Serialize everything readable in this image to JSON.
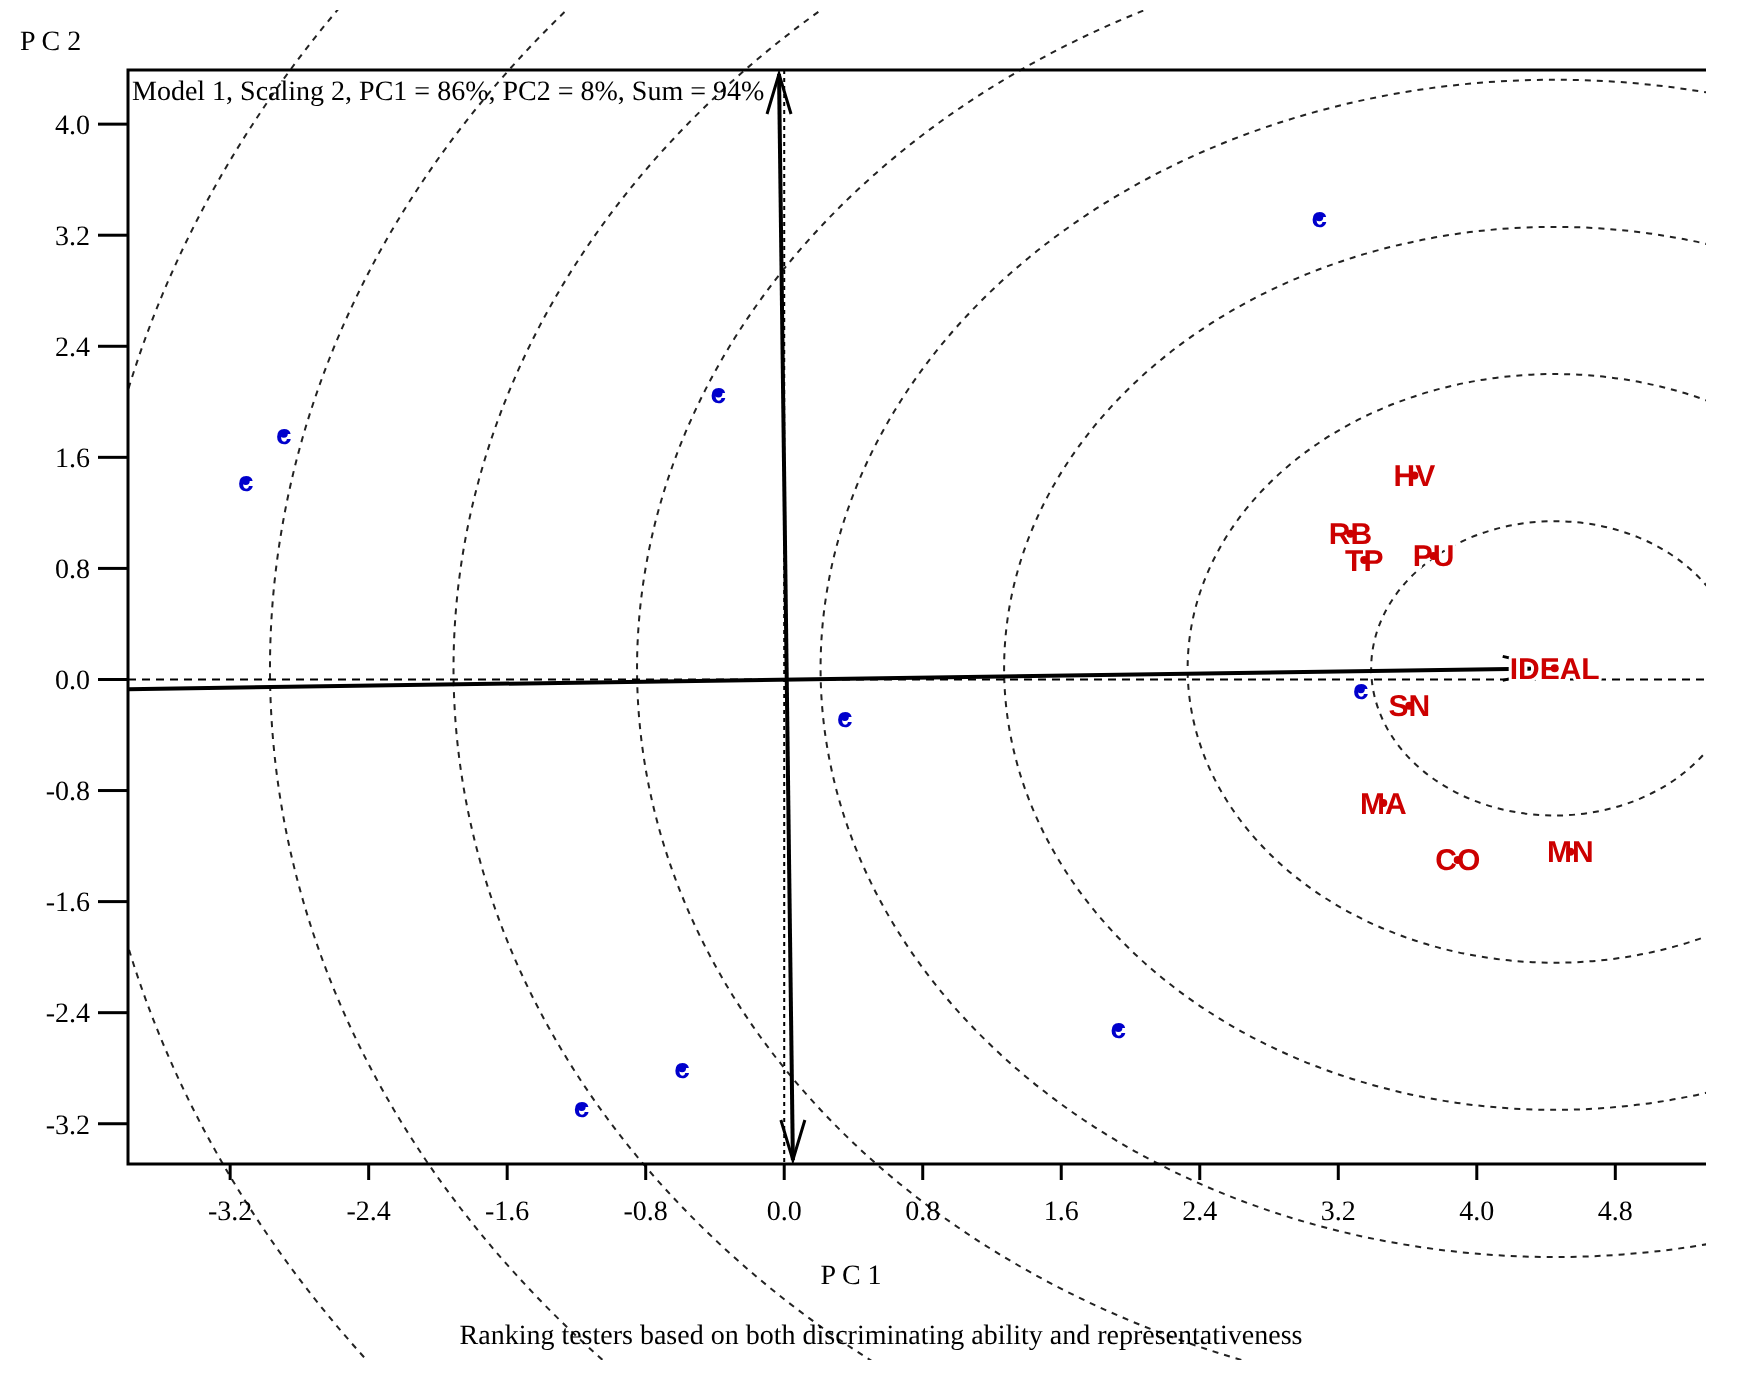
{
  "chart_data": {
    "type": "scatter",
    "title": "Model 1, Scaling 2, PC1 = 86%, PC2 = 8%, Sum = 94%",
    "xlabel": "P C 1",
    "ylabel": "P C 2",
    "annotations": [
      "Ranking testers based on both discriminating ability and representativeness"
    ],
    "marker": "circle",
    "grid": false,
    "xlim": [
      -3.79,
      5.37
    ],
    "ylim": [
      -3.49,
      4.39
    ],
    "xticks": [
      -3.2,
      -2.4,
      -1.6,
      -0.8,
      {
        "value": 0,
        "label": "0.0"
      },
      0.8,
      1.6,
      2.4,
      3.2,
      {
        "value": 4,
        "label": "4.0"
      },
      4.8
    ],
    "yticks": [
      -3.2,
      -2.4,
      -1.6,
      -0.8,
      {
        "value": 0,
        "label": "0.0"
      },
      0.8,
      1.6,
      2.4,
      3.2,
      {
        "value": 4,
        "label": "4.0"
      }
    ],
    "ref_lines": [
      {
        "axis": "x",
        "value": 0,
        "line_style": "dotted",
        "color": "#000000"
      },
      {
        "axis": "y",
        "value": 0,
        "line_style": "dashed",
        "color": "#000000"
      }
    ],
    "series": [
      {
        "color": "#0000cc",
        "x": [
          -3.11,
          -2.89,
          -0.38,
          3.09,
          0.35,
          3.33,
          1.93,
          -0.59,
          -1.17
        ],
        "values": [
          1.43,
          1.77,
          2.06,
          3.33,
          -0.27,
          -0.07,
          -2.51,
          -2.8,
          -3.08
        ],
        "value_labels": [
          "c",
          "c",
          "c",
          "c",
          "c",
          "c",
          "c",
          "c",
          "c"
        ]
      },
      {
        "color": "#cc0000",
        "x": [
          3.64,
          3.27,
          3.35,
          3.75,
          4.45,
          3.61,
          3.46,
          3.89,
          4.54
        ],
        "values": [
          1.47,
          1.05,
          0.86,
          0.89,
          0.08,
          -0.19,
          -0.89,
          -1.3,
          -1.24
        ],
        "value_labels": [
          "HV",
          "RB",
          "TP",
          "PU",
          "IDEAL",
          "SN",
          "MA",
          "CO",
          "MN"
        ]
      }
    ]
  }
}
